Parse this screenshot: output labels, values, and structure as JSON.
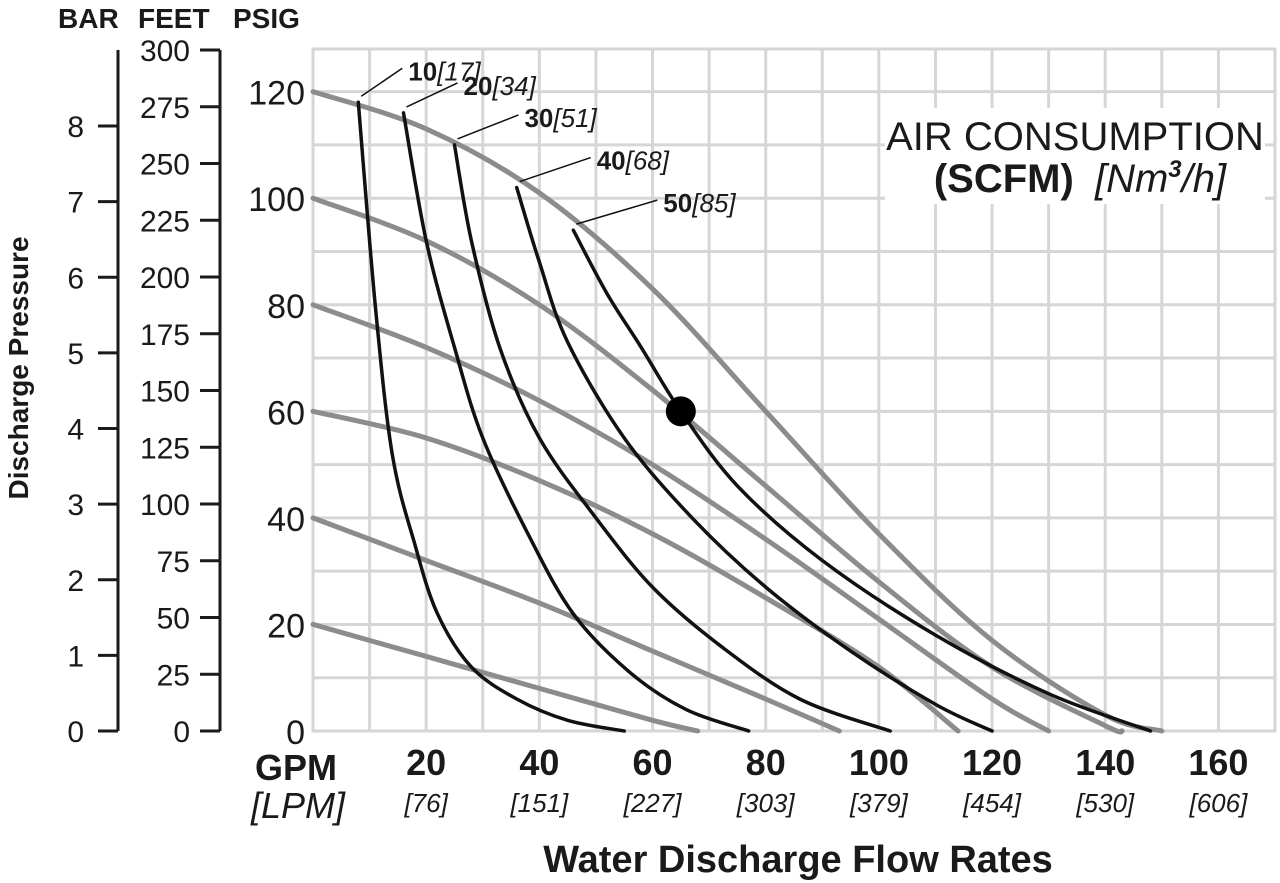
{
  "chart_data": {
    "type": "line",
    "title_line1": "AIR CONSUMPTION",
    "title_line2_bold": "(SCFM)",
    "title_line2_italic_pre": "[Nm",
    "title_line2_sup": "3",
    "title_line2_italic_post": "/h]",
    "xlabel": "Water Discharge Flow Rates",
    "ylabel": "Discharge Pressure",
    "x_unit_primary": "GPM",
    "x_unit_secondary": "[LPM]",
    "unit_headers": {
      "bar": "BAR",
      "feet": "FEET",
      "psig": "PSIG"
    },
    "xlim": [
      0,
      170
    ],
    "ylim": [
      0,
      128
    ],
    "grid": true,
    "x_ticks": [
      {
        "gpm": 20,
        "label": "20",
        "lpm_label": "[76]"
      },
      {
        "gpm": 40,
        "label": "40",
        "lpm_label": "[151]"
      },
      {
        "gpm": 60,
        "label": "60",
        "lpm_label": "[227]"
      },
      {
        "gpm": 80,
        "label": "80",
        "lpm_label": "[303]"
      },
      {
        "gpm": 100,
        "label": "100",
        "lpm_label": "[379]"
      },
      {
        "gpm": 120,
        "label": "120",
        "lpm_label": "[454]"
      },
      {
        "gpm": 140,
        "label": "140",
        "lpm_label": "[530]"
      },
      {
        "gpm": 160,
        "label": "160",
        "lpm_label": "[606]"
      }
    ],
    "psig_ticks": [
      0,
      20,
      40,
      60,
      80,
      100,
      120
    ],
    "feet_ticks": [
      0,
      25,
      50,
      75,
      100,
      125,
      150,
      175,
      200,
      225,
      250,
      275,
      300
    ],
    "bar_ticks": [
      0,
      1,
      2,
      3,
      4,
      5,
      6,
      7,
      8
    ],
    "pressure_curves": [
      {
        "psig_at_zero": 120,
        "points": [
          [
            0,
            120
          ],
          [
            20,
            113
          ],
          [
            40,
            101
          ],
          [
            60,
            83
          ],
          [
            80,
            60
          ],
          [
            100,
            37
          ],
          [
            120,
            17
          ],
          [
            140,
            3
          ],
          [
            150,
            0
          ]
        ]
      },
      {
        "psig_at_zero": 100,
        "points": [
          [
            0,
            100
          ],
          [
            20,
            92
          ],
          [
            40,
            80
          ],
          [
            60,
            64
          ],
          [
            80,
            46
          ],
          [
            100,
            28
          ],
          [
            120,
            12
          ],
          [
            140,
            1
          ],
          [
            143,
            0
          ]
        ]
      },
      {
        "psig_at_zero": 80,
        "points": [
          [
            0,
            80
          ],
          [
            20,
            72
          ],
          [
            40,
            62
          ],
          [
            60,
            50
          ],
          [
            80,
            36
          ],
          [
            100,
            21
          ],
          [
            120,
            6
          ],
          [
            130,
            0
          ]
        ]
      },
      {
        "psig_at_zero": 60,
        "points": [
          [
            0,
            60
          ],
          [
            20,
            55
          ],
          [
            40,
            47
          ],
          [
            60,
            37
          ],
          [
            80,
            25
          ],
          [
            100,
            12
          ],
          [
            114,
            0
          ]
        ]
      },
      {
        "psig_at_zero": 40,
        "points": [
          [
            0,
            40
          ],
          [
            20,
            32
          ],
          [
            40,
            24
          ],
          [
            60,
            15
          ],
          [
            80,
            6
          ],
          [
            93,
            0
          ]
        ]
      },
      {
        "psig_at_zero": 20,
        "points": [
          [
            0,
            20
          ],
          [
            20,
            14
          ],
          [
            40,
            8
          ],
          [
            60,
            2
          ],
          [
            68,
            0
          ]
        ]
      }
    ],
    "series": [
      {
        "name": "10",
        "name_metric": "[17]",
        "points": [
          [
            8,
            118
          ],
          [
            11,
            80
          ],
          [
            14,
            52
          ],
          [
            18,
            35
          ],
          [
            22,
            22
          ],
          [
            28,
            12
          ],
          [
            36,
            6
          ],
          [
            45,
            2
          ],
          [
            55,
            0
          ]
        ]
      },
      {
        "name": "20",
        "name_metric": "[34]",
        "points": [
          [
            16,
            116
          ],
          [
            20,
            92
          ],
          [
            25,
            72
          ],
          [
            30,
            55
          ],
          [
            38,
            37
          ],
          [
            46,
            22
          ],
          [
            56,
            11
          ],
          [
            66,
            4
          ],
          [
            77,
            0
          ]
        ]
      },
      {
        "name": "30",
        "name_metric": "[51]",
        "points": [
          [
            25,
            110
          ],
          [
            28,
            92
          ],
          [
            33,
            72
          ],
          [
            40,
            55
          ],
          [
            50,
            40
          ],
          [
            60,
            27
          ],
          [
            72,
            16
          ],
          [
            86,
            6
          ],
          [
            102,
            0
          ]
        ]
      },
      {
        "name": "40",
        "name_metric": "[68]",
        "points": [
          [
            36,
            102
          ],
          [
            40,
            88
          ],
          [
            45,
            73
          ],
          [
            55,
            55
          ],
          [
            67,
            40
          ],
          [
            80,
            27
          ],
          [
            95,
            15
          ],
          [
            110,
            5
          ],
          [
            120,
            0
          ]
        ]
      },
      {
        "name": "50",
        "name_metric": "[85]",
        "points": [
          [
            46,
            94
          ],
          [
            52,
            82
          ],
          [
            58,
            72
          ],
          [
            65,
            60
          ],
          [
            75,
            46
          ],
          [
            90,
            32
          ],
          [
            110,
            18
          ],
          [
            130,
            7
          ],
          [
            148,
            0
          ]
        ]
      }
    ],
    "operating_point": {
      "gpm": 65,
      "psig": 60
    }
  }
}
